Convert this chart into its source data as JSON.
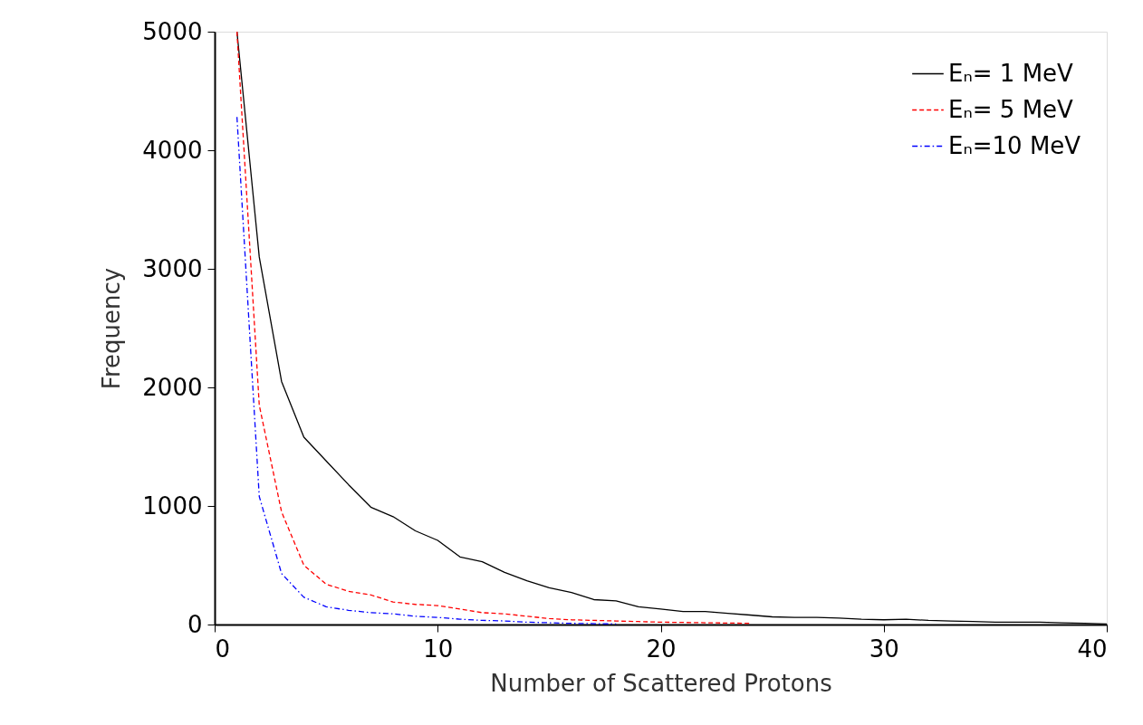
{
  "chart_data": {
    "type": "line",
    "xlabel": "Number of Scattered Protons",
    "ylabel": "Frequency",
    "xlim": [
      0,
      40
    ],
    "xticks": [
      0,
      10,
      20,
      30,
      40
    ],
    "ylim": [
      0,
      5000
    ],
    "yticks": [
      0,
      1000,
      2000,
      3000,
      4000,
      5000
    ],
    "grid": false,
    "legend": "top right",
    "marker": "none",
    "series": [
      {
        "name": "Eₙ=  1 MeV",
        "color": "#000000",
        "line_style": "solid",
        "x": [
          1,
          2,
          3,
          4,
          5,
          6,
          7,
          8,
          9,
          10,
          11,
          12,
          13,
          14,
          15,
          16,
          17,
          18,
          19,
          20,
          21,
          22,
          23,
          24,
          25,
          26,
          27,
          28,
          29,
          30,
          31,
          32,
          33,
          34,
          35,
          36,
          37,
          38,
          39,
          40
        ],
        "values": [
          5000,
          3100,
          2050,
          1580,
          1380,
          1180,
          990,
          910,
          790,
          710,
          570,
          530,
          440,
          370,
          310,
          270,
          210,
          200,
          150,
          130,
          110,
          110,
          95,
          80,
          65,
          60,
          60,
          55,
          45,
          40,
          45,
          35,
          30,
          25,
          20,
          20,
          20,
          15,
          10,
          5
        ]
      },
      {
        "name": "Eₙ=  5 MeV",
        "color": "#ff0000",
        "line_style": "dashed",
        "x": [
          1,
          2,
          3,
          4,
          5,
          6,
          7,
          8,
          9,
          10,
          11,
          12,
          13,
          14,
          15,
          16,
          17,
          18,
          19,
          20,
          22,
          24
        ],
        "values": [
          5000,
          1850,
          950,
          500,
          340,
          280,
          250,
          190,
          170,
          160,
          130,
          100,
          90,
          70,
          50,
          40,
          35,
          30,
          25,
          20,
          15,
          10
        ]
      },
      {
        "name": "Eₙ=10 MeV",
        "color": "#0000ff",
        "line_style": "dotted",
        "x": [
          1,
          2,
          3,
          4,
          5,
          6,
          7,
          8,
          9,
          10,
          11,
          12,
          13,
          14,
          15,
          16,
          18
        ],
        "values": [
          4280,
          1080,
          430,
          230,
          150,
          120,
          100,
          90,
          70,
          60,
          45,
          35,
          30,
          20,
          15,
          10,
          5
        ]
      }
    ]
  }
}
